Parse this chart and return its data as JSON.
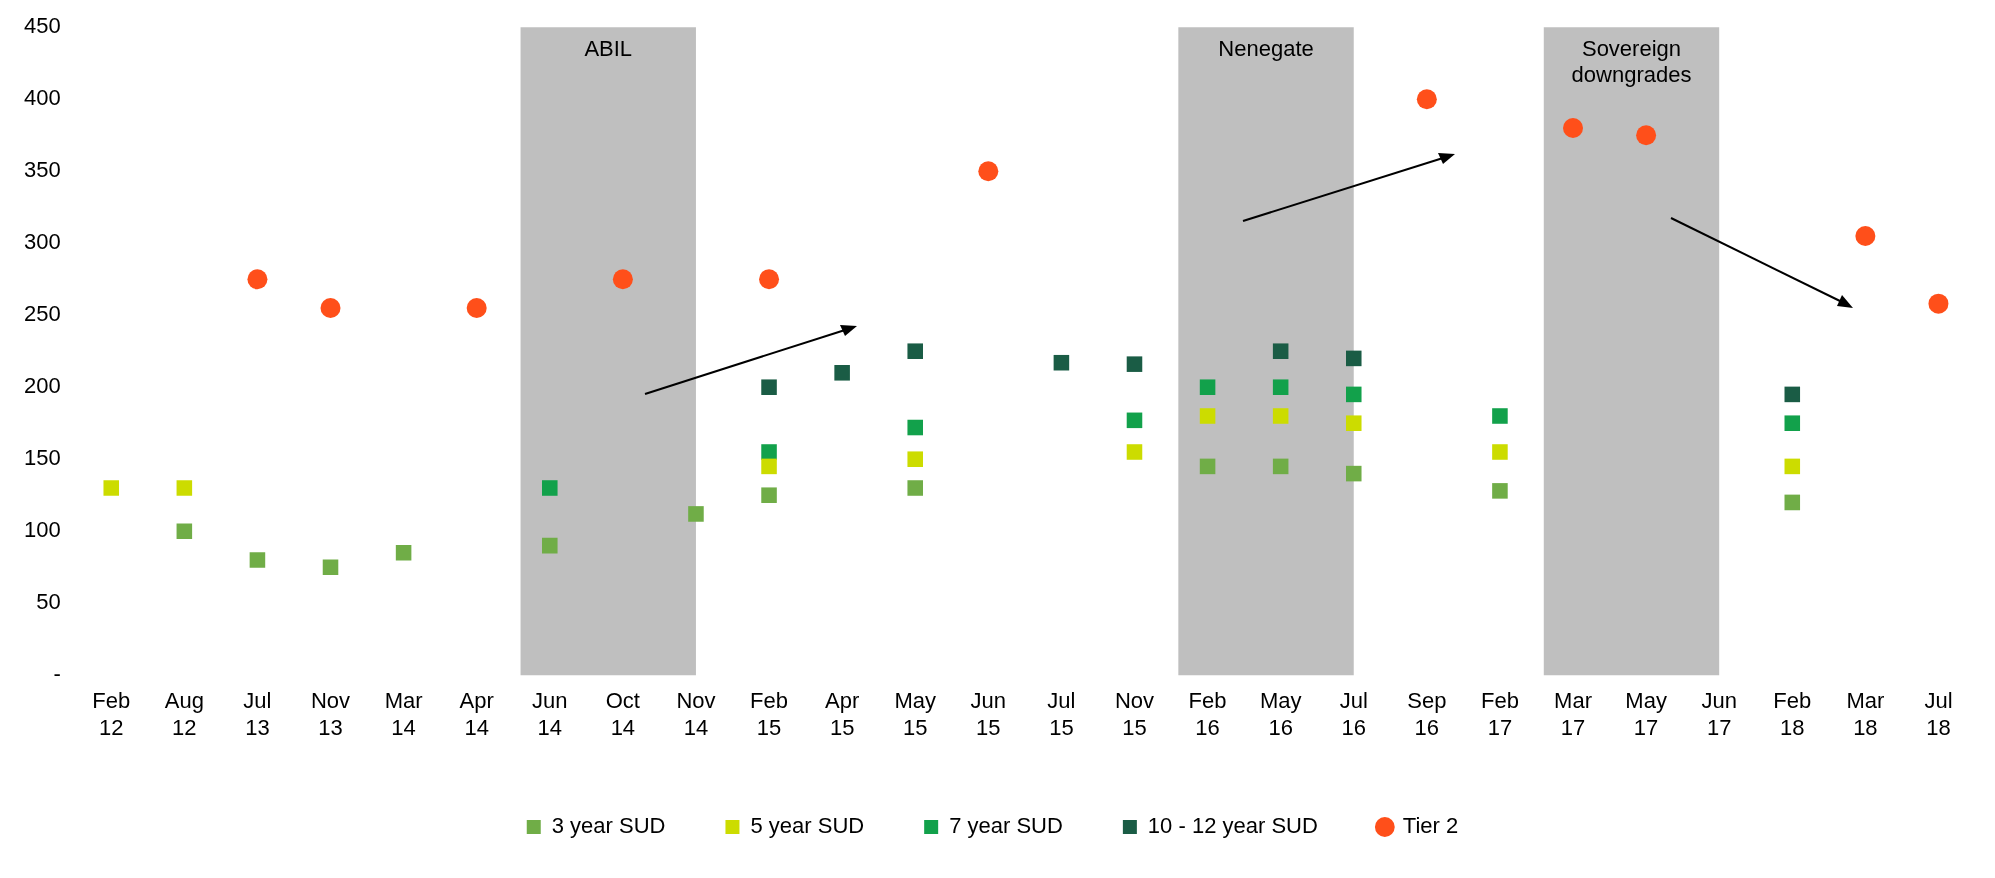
{
  "chart_data": {
    "type": "scatter",
    "categories": [
      "Feb 12",
      "Aug 12",
      "Jul 13",
      "Nov 13",
      "Mar 14",
      "Apr 14",
      "Jun 14",
      "Oct 14",
      "Nov 14",
      "Feb 15",
      "Apr 15",
      "May 15",
      "Jun 15",
      "Jul 15",
      "Nov 15",
      "Feb 16",
      "May 16",
      "Jul 16",
      "Sep 16",
      "Feb 17",
      "Mar 17",
      "May 17",
      "Jun 17",
      "Feb 18",
      "Mar 18",
      "Jul 18"
    ],
    "series": [
      {
        "name": "3 year SUD",
        "color": "#70ad47",
        "marker": "square",
        "values": [
          null,
          100,
          80,
          75,
          85,
          null,
          90,
          null,
          112,
          125,
          null,
          130,
          null,
          null,
          null,
          145,
          145,
          140,
          null,
          128,
          null,
          null,
          null,
          120,
          null,
          null
        ]
      },
      {
        "name": "5 year SUD",
        "color": "#ccdc00",
        "marker": "square",
        "values": [
          130,
          130,
          null,
          null,
          null,
          null,
          null,
          null,
          null,
          145,
          null,
          150,
          null,
          null,
          155,
          180,
          180,
          175,
          null,
          155,
          null,
          null,
          null,
          145,
          null,
          null
        ]
      },
      {
        "name": "7 year SUD",
        "color": "#12a14b",
        "marker": "square",
        "values": [
          null,
          null,
          null,
          null,
          null,
          null,
          130,
          null,
          null,
          155,
          null,
          172,
          null,
          null,
          177,
          200,
          200,
          195,
          null,
          180,
          null,
          null,
          null,
          175,
          null,
          null
        ]
      },
      {
        "name": "10 - 12 year SUD",
        "color": "#1a5c45",
        "marker": "square",
        "values": [
          null,
          null,
          null,
          null,
          null,
          null,
          null,
          null,
          null,
          200,
          210,
          225,
          null,
          217,
          216,
          null,
          225,
          220,
          null,
          null,
          null,
          null,
          null,
          195,
          null,
          null
        ]
      },
      {
        "name": "Tier 2",
        "color": "#ff4f1a",
        "marker": "circle",
        "values": [
          null,
          null,
          275,
          255,
          null,
          255,
          null,
          275,
          null,
          275,
          null,
          null,
          350,
          null,
          null,
          null,
          null,
          null,
          400,
          null,
          380,
          375,
          null,
          null,
          305,
          258
        ]
      }
    ],
    "ylim": [
      0,
      450
    ],
    "yticks": [
      {
        "value": 0,
        "label": "-"
      },
      50,
      100,
      150,
      200,
      250,
      300,
      350,
      400,
      450
    ],
    "bands": [
      {
        "axis": "x",
        "from": "Jun 14",
        "to": "Nov 14",
        "label": "ABIL",
        "color": "#bfbfbf"
      },
      {
        "axis": "x",
        "from": "Feb 16",
        "to": "Jul 16",
        "label": "Nenegate",
        "color": "#bfbfbf"
      },
      {
        "axis": "x",
        "from": "Mar 17",
        "to": "Jun 17",
        "label": "Sovereign downgrades",
        "color": "#bfbfbf"
      }
    ],
    "grid": false,
    "legend": "bottom"
  }
}
